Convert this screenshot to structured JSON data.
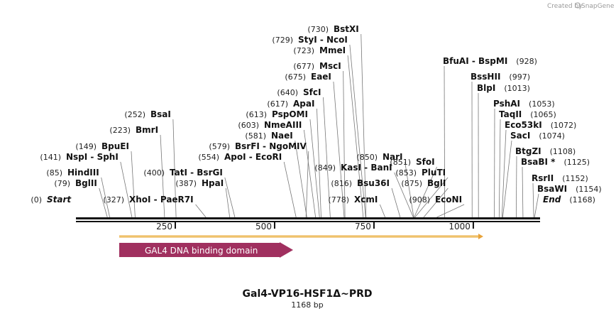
{
  "credit": {
    "prefix": "Created by",
    "brand": "SnapGene"
  },
  "map": {
    "title": "Gal4-VP16-HSF1Δ~PRD",
    "length_label": "1168 bp",
    "length_bp": 1168,
    "ticks": [
      "250",
      "500",
      "750",
      "1000"
    ],
    "tick_values": [
      250,
      500,
      750,
      1000
    ],
    "labels": [
      {
        "pos": "(730)",
        "text": "BstXI",
        "bp": 730
      },
      {
        "pos": "(729)",
        "text": "StyI  -  NcoI",
        "bp": 729
      },
      {
        "pos": "(723)",
        "text": "MmeI",
        "bp": 723
      },
      {
        "pos": "(677)",
        "text": "MscI",
        "bp": 677
      },
      {
        "pos": "(675)",
        "text": "EaeI",
        "bp": 675
      },
      {
        "pos": "(640)",
        "text": "SfcI",
        "bp": 640
      },
      {
        "pos": "(617)",
        "text": "ApaI",
        "bp": 617
      },
      {
        "pos": "(613)",
        "text": "PspOMI",
        "bp": 613
      },
      {
        "pos": "(603)",
        "text": "NmeAIII",
        "bp": 603
      },
      {
        "pos": "(581)",
        "text": "NaeI",
        "bp": 581
      },
      {
        "pos": "(579)",
        "text": "BsrFI  -  NgoMIV",
        "bp": 579
      },
      {
        "pos": "(554)",
        "text": "ApoI  -  EcoRI",
        "bp": 554
      },
      {
        "pos": "(252)",
        "text": "BsaI",
        "bp": 252
      },
      {
        "pos": "(223)",
        "text": "BmrI",
        "bp": 223
      },
      {
        "pos": "(149)",
        "text": "BpuEI",
        "bp": 149
      },
      {
        "pos": "(141)",
        "text": "NspI  -  SphI",
        "bp": 141
      },
      {
        "pos": "(85)",
        "text": "HindIII",
        "bp": 85
      },
      {
        "pos": "(79)",
        "text": "BglII",
        "bp": 79
      },
      {
        "pos": "(0)",
        "text": "Start",
        "bp": 0
      },
      {
        "pos": "(327)",
        "text": "XhoI  -  PaeR7I",
        "bp": 327
      },
      {
        "pos": "(400)",
        "text": "TatI  -  BsrGI",
        "bp": 400
      },
      {
        "pos": "(387)",
        "text": "HpaI",
        "bp": 387
      },
      {
        "pos": "(850)",
        "text": "NarI",
        "bp": 850
      },
      {
        "pos": "(849)",
        "text": "KasI  -  BanI",
        "bp": 849
      },
      {
        "pos": "(816)",
        "text": "Bsu36I",
        "bp": 816
      },
      {
        "pos": "(778)",
        "text": "XcmI",
        "bp": 778
      },
      {
        "pos": "(851)",
        "text": "SfoI",
        "bp": 851
      },
      {
        "pos": "(853)",
        "text": "PluTI",
        "bp": 853
      },
      {
        "pos": "(875)",
        "text": "BglI",
        "bp": 875
      },
      {
        "pos": "(908)",
        "text": "EcoNI",
        "bp": 908
      },
      {
        "pos": "(928)",
        "text": "BfuAI  -  BspMI",
        "bp": 928
      },
      {
        "pos": "(997)",
        "text": "BssHII",
        "bp": 997
      },
      {
        "pos": "(1013)",
        "text": "BlpI",
        "bp": 1013
      },
      {
        "pos": "(1053)",
        "text": "PshAI",
        "bp": 1053
      },
      {
        "pos": "(1065)",
        "text": "TaqII",
        "bp": 1065
      },
      {
        "pos": "(1072)",
        "text": "Eco53kI",
        "bp": 1072
      },
      {
        "pos": "(1074)",
        "text": "SacI",
        "bp": 1074
      },
      {
        "pos": "(1108)",
        "text": "BtgZI",
        "bp": 1108
      },
      {
        "pos": "(1125)",
        "text": "BsaBI *",
        "bp": 1125
      },
      {
        "pos": "(1152)",
        "text": "RsrII",
        "bp": 1152
      },
      {
        "pos": "(1154)",
        "text": "BsaWI",
        "bp": 1154
      },
      {
        "pos": "(1168)",
        "text": "End",
        "bp": 1168
      }
    ]
  },
  "features": {
    "orf_color": "#e8a33a",
    "domain": {
      "label": "GAL4 DNA binding domain",
      "color": "#a0305f"
    }
  }
}
